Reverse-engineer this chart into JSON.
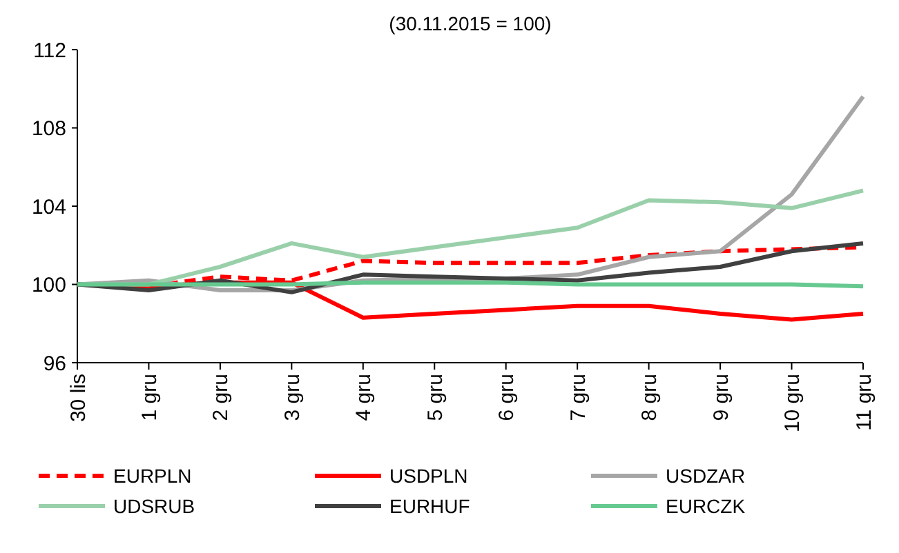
{
  "chart_data": {
    "type": "line",
    "title": "(30.11.2015 = 100)",
    "categories": [
      "30 lis",
      "1 gru",
      "2 gru",
      "3 gru",
      "4 gru",
      "5 gru",
      "6 gru",
      "7 gru",
      "8 gru",
      "9 gru",
      "10 gru",
      "11 gru"
    ],
    "series": [
      {
        "name": "EURPLN",
        "color": "#ff0000",
        "line_style": "dashed",
        "values": [
          100,
          99.9,
          100.4,
          100.2,
          101.2,
          101.1,
          101.1,
          101.1,
          101.5,
          101.7,
          101.8,
          101.9
        ]
      },
      {
        "name": "USDPLN",
        "color": "#ff0000",
        "values": [
          100,
          99.9,
          100.1,
          100.1,
          98.3,
          98.5,
          98.7,
          98.9,
          98.9,
          98.5,
          98.2,
          98.5
        ]
      },
      {
        "name": "USDZAR",
        "color": "#a6a6a6",
        "values": [
          100,
          100.2,
          99.7,
          99.7,
          100.2,
          100.3,
          100.3,
          100.5,
          101.4,
          101.7,
          104.6,
          109.6
        ]
      },
      {
        "name": "UDSRUB",
        "color": "#99d0aa",
        "values": [
          100,
          100,
          100.9,
          102.1,
          101.4,
          101.9,
          102.4,
          102.9,
          104.3,
          104.2,
          103.9,
          104.8
        ]
      },
      {
        "name": "EURHUF",
        "color": "#404040",
        "values": [
          100,
          99.7,
          100.2,
          99.6,
          100.5,
          100.4,
          100.3,
          100.2,
          100.6,
          100.9,
          101.7,
          102.1
        ]
      },
      {
        "name": "EURCZK",
        "color": "#66c990",
        "values": [
          100,
          100,
          100,
          100,
          100.1,
          100.1,
          100.1,
          100,
          100,
          100,
          100,
          99.9
        ]
      }
    ],
    "ylim": [
      96,
      112
    ],
    "yticks": [
      96,
      100,
      104,
      108,
      112
    ],
    "grid": false,
    "legend": "bottom",
    "line_style": "solid"
  }
}
